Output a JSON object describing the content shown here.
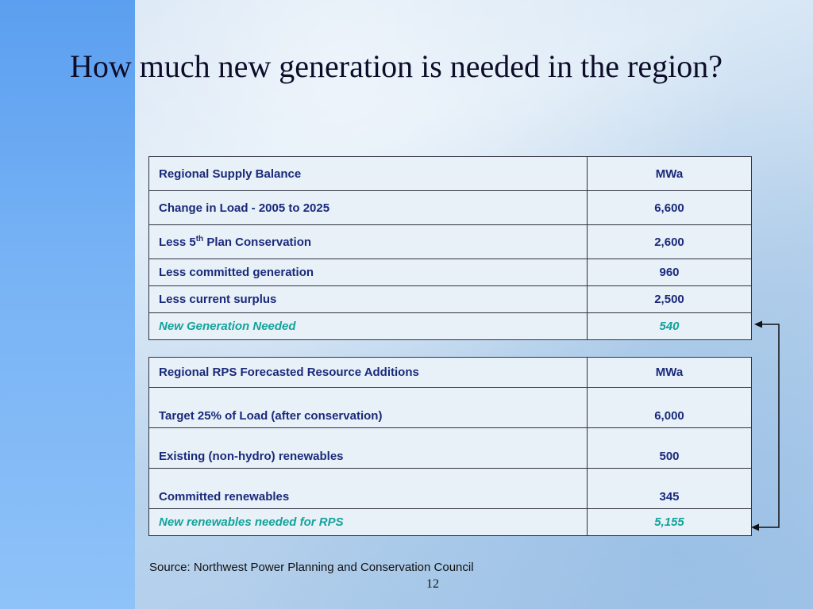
{
  "title": "How much new generation is needed in the region?",
  "supply_table": {
    "header": {
      "label": "Regional Supply Balance",
      "unit": "MWa"
    },
    "rows": [
      {
        "label": "Change in Load - 2005 to 2025",
        "value": "6,600"
      },
      {
        "label_pre": "Less 5",
        "label_sup": "th",
        "label_post": " Plan Conservation",
        "value": "2,600"
      },
      {
        "label": "Less committed generation",
        "value": "960"
      },
      {
        "label": "Less current surplus",
        "value": "2,500"
      }
    ],
    "result": {
      "label": "New Generation Needed",
      "value": "540"
    }
  },
  "rps_table": {
    "header": {
      "label": "Regional RPS Forecasted Resource Additions",
      "unit": "MWa"
    },
    "rows": [
      {
        "label": "Target 25% of Load (after conservation)",
        "value": "6,000"
      },
      {
        "label": "Existing (non-hydro) renewables",
        "value": "500"
      },
      {
        "label": "Committed renewables",
        "value": "345"
      }
    ],
    "result": {
      "label": "New renewables needed for RPS",
      "value": "5,155"
    }
  },
  "source": "Source: Northwest Power Planning and Conservation Council",
  "page_number": "12",
  "colors": {
    "table_text": "#1a2a7a",
    "highlight_text": "#12a39a",
    "left_band": "#6aa9f2"
  }
}
